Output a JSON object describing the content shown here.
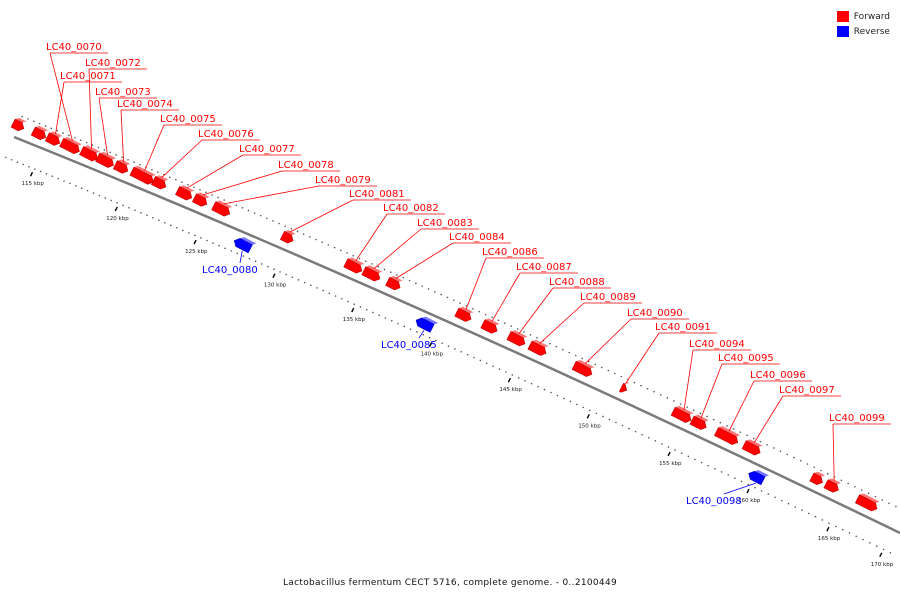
{
  "title": "Lactobacillus fermentum CECT 5716, complete genome. - 0..2100449",
  "legend": [
    {
      "label": "Forward",
      "color": "#ff0000"
    },
    {
      "label": "Reverse",
      "color": "#0000ff"
    }
  ],
  "colors": {
    "forward": "#ff0000",
    "reverse": "#0000ff",
    "backbone": "#777777"
  },
  "ticks": [
    "115 kbp",
    "120 kbp",
    "125 kbp",
    "130 kbp",
    "135 kbp",
    "140 kbp",
    "145 kbp",
    "150 kbp",
    "155 kbp",
    "160 kbp",
    "165 kbp",
    "170 kbp"
  ],
  "genes": [
    {
      "name": "LC40_0070",
      "strand": "forward"
    },
    {
      "name": "LC40_0072",
      "strand": "forward"
    },
    {
      "name": "LC40_0071",
      "strand": "forward"
    },
    {
      "name": "LC40_0073",
      "strand": "forward"
    },
    {
      "name": "LC40_0074",
      "strand": "forward"
    },
    {
      "name": "LC40_0075",
      "strand": "forward"
    },
    {
      "name": "LC40_0076",
      "strand": "forward"
    },
    {
      "name": "LC40_0077",
      "strand": "forward"
    },
    {
      "name": "LC40_0078",
      "strand": "forward"
    },
    {
      "name": "LC40_0079",
      "strand": "forward"
    },
    {
      "name": "LC40_0081",
      "strand": "forward"
    },
    {
      "name": "LC40_0082",
      "strand": "forward"
    },
    {
      "name": "LC40_0083",
      "strand": "forward"
    },
    {
      "name": "LC40_0084",
      "strand": "forward"
    },
    {
      "name": "LC40_0086",
      "strand": "forward"
    },
    {
      "name": "LC40_0087",
      "strand": "forward"
    },
    {
      "name": "LC40_0088",
      "strand": "forward"
    },
    {
      "name": "LC40_0089",
      "strand": "forward"
    },
    {
      "name": "LC40_0090",
      "strand": "forward"
    },
    {
      "name": "LC40_0091",
      "strand": "forward"
    },
    {
      "name": "LC40_0094",
      "strand": "forward"
    },
    {
      "name": "LC40_0095",
      "strand": "forward"
    },
    {
      "name": "LC40_0096",
      "strand": "forward"
    },
    {
      "name": "LC40_0097",
      "strand": "forward"
    },
    {
      "name": "LC40_0099",
      "strand": "forward"
    },
    {
      "name": "LC40_0080",
      "strand": "reverse"
    },
    {
      "name": "LC40_0085",
      "strand": "reverse"
    },
    {
      "name": "LC40_0098",
      "strand": "reverse"
    }
  ]
}
